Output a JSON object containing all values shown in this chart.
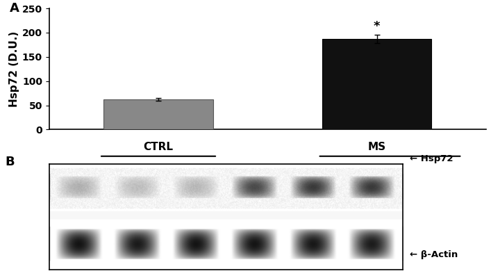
{
  "bar_categories": [
    "CTRL",
    "MS"
  ],
  "bar_values": [
    62,
    187
  ],
  "bar_errors": [
    3,
    8
  ],
  "bar_colors": [
    "#888888",
    "#111111"
  ],
  "ylabel": "Hsp72 (D.U.)",
  "ylim": [
    0,
    250
  ],
  "yticks": [
    0,
    50,
    100,
    150,
    200,
    250
  ],
  "label_A": "A",
  "label_B": "B",
  "ctrl_label": "CTRL",
  "ms_label": "MS",
  "asterisk": "*",
  "arrow_label_hsp72": "← Hsp72",
  "arrow_label_actin": "← β-Actin",
  "bg_color": "#ffffff",
  "axis_fontsize": 11,
  "tick_fontsize": 10,
  "label_fontsize": 13
}
